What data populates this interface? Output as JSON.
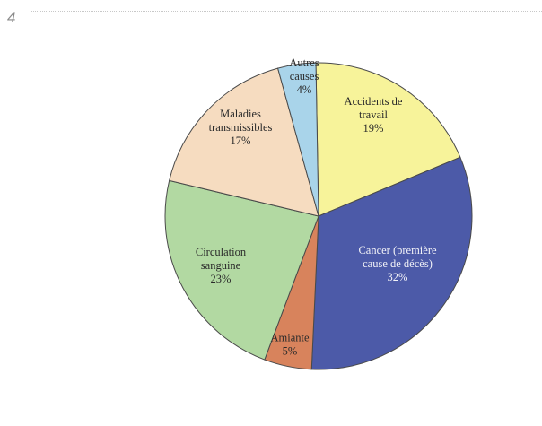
{
  "figure_number": "4",
  "chart_data": {
    "type": "pie",
    "title": "",
    "slices": [
      {
        "label_lines": [
          "Accidents de",
          "travail",
          "19%"
        ],
        "value": 19,
        "color": "#f7f39a"
      },
      {
        "label_lines": [
          "Cancer (première",
          "cause de décès)",
          "32%"
        ],
        "value": 32,
        "color": "#4c5aa8"
      },
      {
        "label_lines": [
          "Amiante",
          "5%"
        ],
        "value": 5,
        "color": "#d8835c"
      },
      {
        "label_lines": [
          "Circulation",
          "sanguine",
          "23%"
        ],
        "value": 23,
        "color": "#b2d9a2"
      },
      {
        "label_lines": [
          "Maladies",
          "transmissibles",
          "17%"
        ],
        "value": 17,
        "color": "#f6dcc0"
      },
      {
        "label_lines": [
          "Autres",
          "causes",
          "4%"
        ],
        "value": 4,
        "color": "#a9d4ea"
      }
    ]
  }
}
